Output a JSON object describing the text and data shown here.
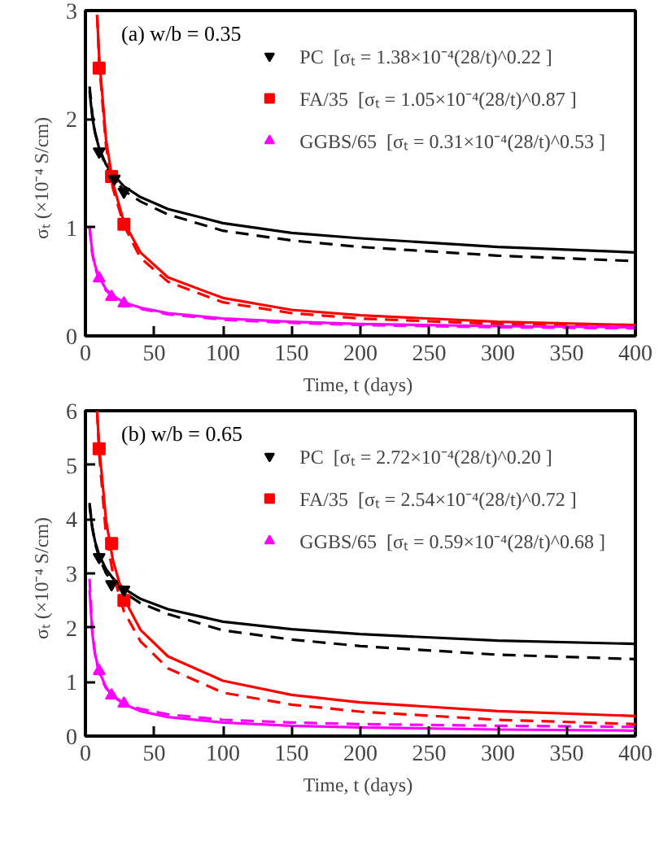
{
  "chart_data": [
    {
      "type": "scatter",
      "annotations": [
        "(a) w/b = 0.35"
      ],
      "xlabel": "Time, t  (days)",
      "ylabel": "σₜ  (×10⁻⁴  S/cm)",
      "xlim": [
        0,
        400
      ],
      "ylim": [
        0,
        3
      ],
      "xticks": [
        0,
        50,
        100,
        150,
        200,
        250,
        300,
        350,
        400
      ],
      "yticks": [
        0,
        1,
        2,
        3
      ],
      "grid": false,
      "legend": "top right",
      "series": [
        {
          "type": "line",
          "color": "#000000",
          "line_style": "solid",
          "x": [
            3,
            5,
            7,
            10,
            15,
            20,
            28,
            40,
            60,
            100,
            150,
            200,
            300,
            400
          ],
          "values": [
            2.26,
            2.02,
            1.87,
            1.73,
            1.58,
            1.49,
            1.38,
            1.28,
            1.17,
            1.04,
            0.95,
            0.9,
            0.82,
            0.77
          ]
        },
        {
          "type": "line",
          "color": "#000000",
          "line_style": "dashed",
          "x": [
            3,
            5,
            7,
            10,
            15,
            20,
            28,
            40,
            60,
            100,
            150,
            200,
            300,
            400
          ],
          "values": [
            2.3,
            2.05,
            1.88,
            1.73,
            1.56,
            1.46,
            1.34,
            1.24,
            1.12,
            0.97,
            0.88,
            0.82,
            0.74,
            0.69
          ]
        },
        {
          "type": "line",
          "color": "#ff0000",
          "line_style": "solid",
          "x": [
            8.5,
            10,
            15,
            20,
            28,
            40,
            60,
            100,
            150,
            200,
            300,
            400
          ],
          "values": [
            2.96,
            2.57,
            1.81,
            1.41,
            1.05,
            0.77,
            0.54,
            0.35,
            0.24,
            0.19,
            0.13,
            0.1
          ]
        },
        {
          "type": "line",
          "color": "#ff0000",
          "line_style": "dashed",
          "x": [
            8.5,
            10,
            15,
            20,
            28,
            40,
            60,
            100,
            150,
            200,
            300,
            400
          ],
          "values": [
            2.96,
            2.52,
            1.75,
            1.36,
            1.02,
            0.72,
            0.5,
            0.31,
            0.21,
            0.16,
            0.11,
            0.08
          ]
        },
        {
          "type": "line",
          "color": "#ff00ff",
          "line_style": "solid",
          "x": [
            3,
            5,
            7,
            10,
            15,
            20,
            28,
            40,
            60,
            100,
            150,
            200,
            300,
            400
          ],
          "values": [
            1.01,
            0.77,
            0.65,
            0.54,
            0.43,
            0.37,
            0.31,
            0.26,
            0.21,
            0.16,
            0.13,
            0.11,
            0.09,
            0.08
          ]
        },
        {
          "type": "line",
          "color": "#ff00ff",
          "line_style": "dashed",
          "x": [
            3,
            5,
            7,
            10,
            15,
            20,
            28,
            40,
            60,
            100,
            150,
            200,
            300,
            400
          ],
          "values": [
            1.0,
            0.76,
            0.63,
            0.52,
            0.42,
            0.36,
            0.3,
            0.25,
            0.2,
            0.15,
            0.12,
            0.1,
            0.08,
            0.07
          ]
        },
        {
          "name": "PC  [σₜ = 1.38×10⁻⁴(28/t)^0.22 ]",
          "marker": "triangle_down",
          "color": "#000000",
          "x": [
            10,
            21,
            28
          ],
          "values": [
            1.7,
            1.45,
            1.33
          ]
        },
        {
          "name": "FA/35  [σₜ = 1.05×10⁻⁴(28/t)^0.87 ]",
          "marker": "square",
          "color": "#ff0000",
          "x": [
            10,
            19,
            28
          ],
          "values": [
            2.47,
            1.47,
            1.03
          ]
        },
        {
          "name": "GGBS/65  [σₜ = 0.31×10⁻⁴(28/t)^0.53 ]",
          "marker": "triangle",
          "color": "#ff00ff",
          "x": [
            10,
            19,
            28
          ],
          "values": [
            0.53,
            0.36,
            0.3
          ]
        }
      ]
    },
    {
      "type": "scatter",
      "annotations": [
        "(b) w/b = 0.65"
      ],
      "xlabel": "Time, t  (days)",
      "ylabel": "σₜ  (×10⁻⁴  S/cm)",
      "xlim": [
        0,
        400
      ],
      "ylim": [
        0,
        6
      ],
      "xticks": [
        0,
        50,
        100,
        150,
        200,
        250,
        300,
        350,
        400
      ],
      "yticks": [
        0,
        1,
        2,
        3,
        4,
        5,
        6
      ],
      "grid": false,
      "legend": "top right",
      "series": [
        {
          "type": "line",
          "color": "#000000",
          "line_style": "solid",
          "x": [
            3,
            5,
            7,
            10,
            15,
            20,
            28,
            40,
            60,
            100,
            150,
            200,
            300,
            400
          ],
          "values": [
            4.25,
            3.84,
            3.59,
            3.34,
            3.08,
            2.91,
            2.72,
            2.53,
            2.34,
            2.11,
            1.97,
            1.88,
            1.76,
            1.7
          ]
        },
        {
          "type": "line",
          "color": "#000000",
          "line_style": "dashed",
          "x": [
            3,
            5,
            7,
            10,
            15,
            20,
            28,
            40,
            60,
            100,
            150,
            200,
            300,
            400
          ],
          "values": [
            4.3,
            3.85,
            3.55,
            3.3,
            3.0,
            2.85,
            2.65,
            2.45,
            2.25,
            1.95,
            1.78,
            1.66,
            1.5,
            1.42
          ]
        },
        {
          "type": "line",
          "color": "#ff0000",
          "line_style": "solid",
          "x": [
            8.5,
            10,
            15,
            20,
            28,
            40,
            60,
            100,
            150,
            200,
            300,
            400
          ],
          "values": [
            5.99,
            5.33,
            3.98,
            3.24,
            2.54,
            1.96,
            1.47,
            1.02,
            0.76,
            0.62,
            0.46,
            0.37
          ]
        },
        {
          "type": "line",
          "color": "#ff0000",
          "line_style": "dashed",
          "x": [
            8.5,
            10,
            15,
            20,
            28,
            40,
            60,
            100,
            150,
            200,
            300,
            400
          ],
          "values": [
            5.99,
            5.2,
            3.7,
            3.0,
            2.3,
            1.75,
            1.25,
            0.8,
            0.58,
            0.45,
            0.3,
            0.22
          ]
        },
        {
          "type": "line",
          "color": "#ff00ff",
          "line_style": "solid",
          "x": [
            3,
            5,
            7,
            10,
            15,
            20,
            28,
            40,
            60,
            100,
            150,
            200,
            300,
            400
          ],
          "values": [
            2.69,
            1.9,
            1.51,
            1.19,
            0.9,
            0.74,
            0.59,
            0.46,
            0.35,
            0.25,
            0.19,
            0.16,
            0.12,
            0.1
          ]
        },
        {
          "type": "line",
          "color": "#ff00ff",
          "line_style": "dashed",
          "x": [
            3,
            5,
            7,
            10,
            15,
            20,
            28,
            40,
            60,
            100,
            150,
            200,
            300,
            400
          ],
          "values": [
            2.9,
            1.95,
            1.5,
            1.15,
            0.88,
            0.75,
            0.6,
            0.5,
            0.4,
            0.3,
            0.25,
            0.22,
            0.19,
            0.17
          ]
        },
        {
          "name": "PC  [σₜ = 2.72×10⁻⁴(28/t)^0.20 ]",
          "marker": "triangle_down",
          "color": "#000000",
          "x": [
            10,
            19,
            28
          ],
          "values": [
            3.3,
            2.8,
            2.7
          ]
        },
        {
          "name": "FA/35  [σₜ = 2.54×10⁻⁴(28/t)^0.72 ]",
          "marker": "square",
          "color": "#ff0000",
          "x": [
            10,
            19,
            28
          ],
          "values": [
            5.3,
            3.55,
            2.5
          ]
        },
        {
          "name": "GGBS/65  [σₜ = 0.59×10⁻⁴(28/t)^0.68 ]",
          "marker": "triangle",
          "color": "#ff00ff",
          "x": [
            10,
            19,
            28
          ],
          "values": [
            1.2,
            0.75,
            0.6
          ]
        }
      ]
    }
  ]
}
